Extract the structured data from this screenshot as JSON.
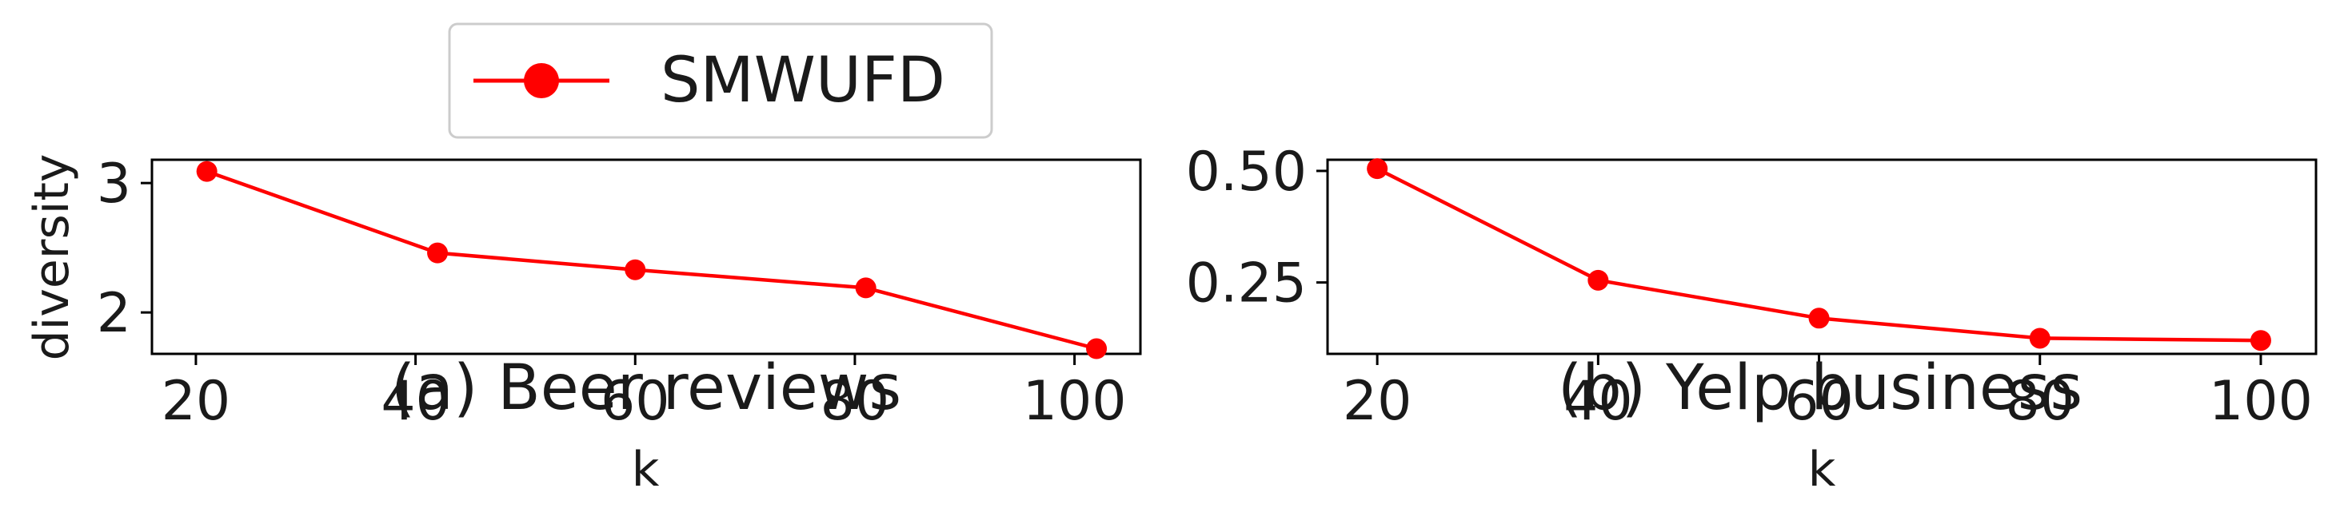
{
  "legend": {
    "label": "SMWUFD",
    "color": "#ff0000",
    "position": "top-left"
  },
  "chart_data": [
    {
      "type": "line",
      "caption": "(a) Beer reviews",
      "xlabel": "k",
      "ylabel": "diversity",
      "x_ticks": [
        "20",
        "40",
        "60",
        "80",
        "100"
      ],
      "y_ticks": [
        "2",
        "3"
      ],
      "xlim": [
        16,
        106
      ],
      "ylim": [
        1.68,
        3.18
      ],
      "grid": false,
      "series": [
        {
          "name": "SMWUFD",
          "color": "#ff0000",
          "x": [
            21,
            42,
            60,
            81,
            102
          ],
          "y": [
            3.09,
            2.46,
            2.33,
            2.19,
            1.72
          ]
        }
      ]
    },
    {
      "type": "line",
      "caption": "(b) Yelp business",
      "xlabel": "k",
      "ylabel": "",
      "x_ticks": [
        "20",
        "40",
        "60",
        "80",
        "100"
      ],
      "y_ticks": [
        "0.25",
        "0.50"
      ],
      "xlim": [
        15.5,
        105
      ],
      "ylim": [
        0.09,
        0.525
      ],
      "grid": false,
      "series": [
        {
          "name": "SMWUFD",
          "color": "#ff0000",
          "x": [
            20,
            40,
            60,
            80,
            100
          ],
          "y": [
            0.505,
            0.255,
            0.17,
            0.125,
            0.12
          ]
        }
      ]
    }
  ]
}
